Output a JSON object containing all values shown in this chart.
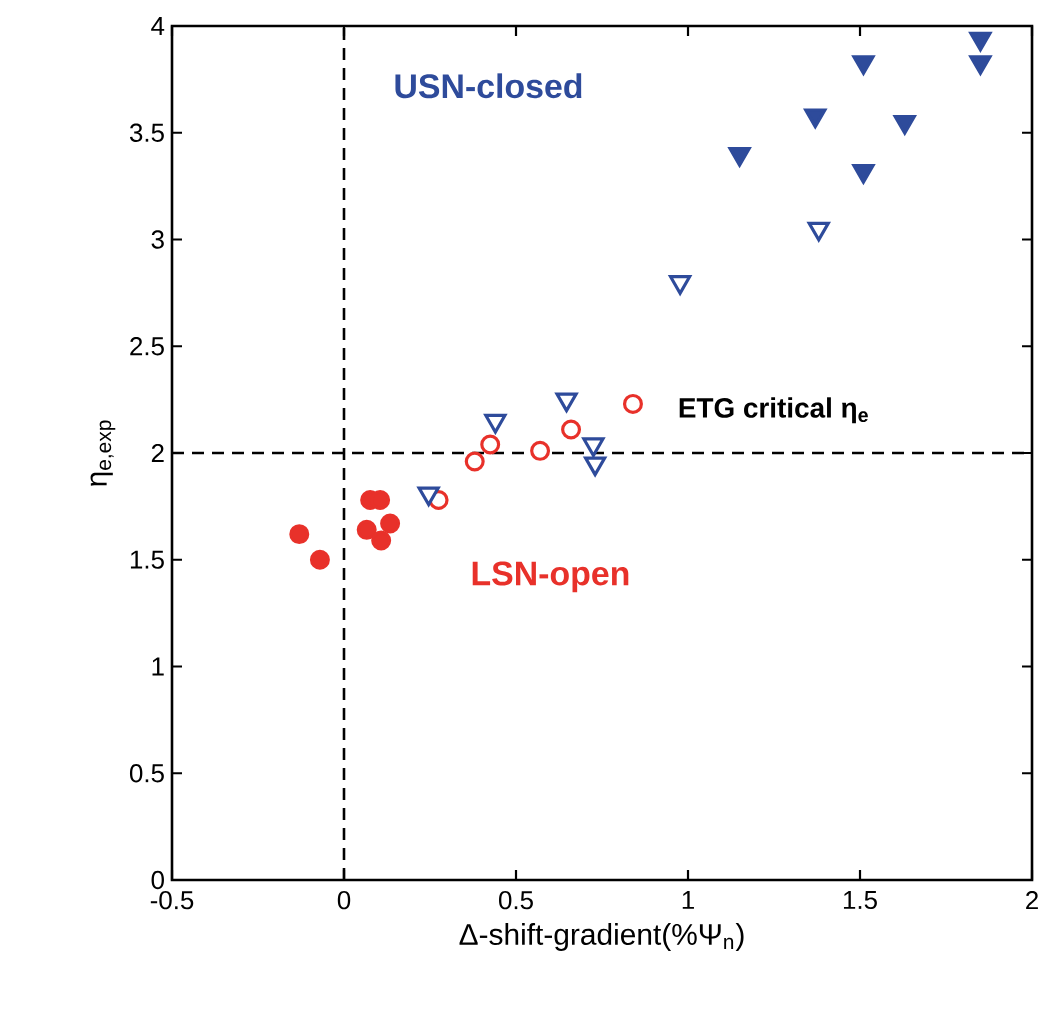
{
  "chart_data": {
    "type": "scatter",
    "xlabel": "Δ-shift-gradient(%Ψ$_{n}$)",
    "ylabel": "η$_{e,exp}$",
    "annotations": [
      "USN-closed",
      "LSN-open"
    ],
    "series": [
      {
        "color": "#e8312a",
        "marker": "circle",
        "x": [
          -0.13,
          -0.07,
          0.076,
          0.105,
          0.066,
          0.134,
          0.108
        ],
        "values": [
          1.62,
          1.5,
          1.78,
          1.78,
          1.64,
          1.67,
          1.59
        ]
      },
      {
        "color": "#e8312a",
        "marker": "circle",
        "x": [
          0.275,
          0.38,
          0.425,
          0.57,
          0.66,
          0.84
        ],
        "values": [
          1.78,
          1.96,
          2.04,
          2.01,
          2.11,
          2.23
        ]
      },
      {
        "color": "#2e4b9b",
        "marker": "triangle",
        "x": [
          0.246,
          0.44,
          0.647,
          0.725,
          0.73,
          0.977,
          1.38
        ],
        "values": [
          1.81,
          2.15,
          2.25,
          2.04,
          1.95,
          2.8,
          3.05
        ]
      },
      {
        "color": "#2e4b9b",
        "marker": "triangle",
        "x": [
          1.15,
          1.37,
          1.51,
          1.63,
          1.51,
          1.85,
          1.85
        ],
        "values": [
          3.4,
          3.58,
          3.32,
          3.55,
          3.83,
          3.94,
          3.83
        ]
      }
    ],
    "ref_lines": [
      {
        "axis": "x",
        "value": 0,
        "line_style": "dashed"
      },
      {
        "axis": "y",
        "value": 2,
        "line_style": "dashed",
        "label": "ETG critical η$_{e}$"
      }
    ],
    "xlim": [
      -0.5,
      2
    ],
    "ylim": [
      0,
      4
    ],
    "xticks": [
      -0.5,
      0,
      0.5,
      1,
      1.5,
      2
    ],
    "yticks": [
      0,
      0.5,
      1,
      1.5,
      2,
      2.5,
      3,
      3.5,
      4
    ],
    "grid": false
  }
}
